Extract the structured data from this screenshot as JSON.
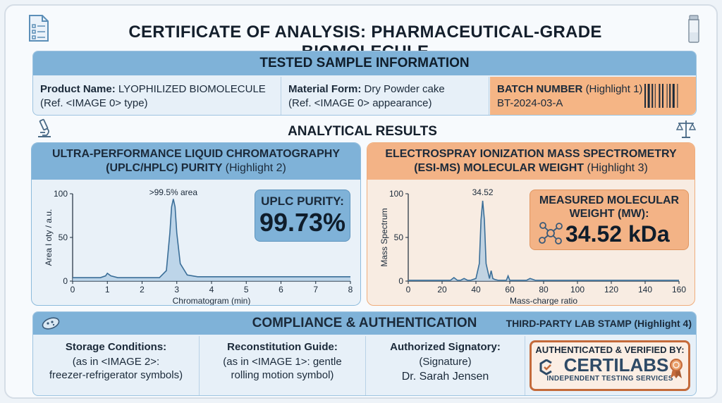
{
  "header": {
    "title": "CERTIFICATE OF ANALYSIS: PHARMACEUTICAL-GRADE BIOMOLECULE",
    "left_icon": "document-checklist-icon",
    "right_icon": "vial-icon"
  },
  "sample_info": {
    "heading": "TESTED SAMPLE INFORMATION",
    "product_name_label": "Product Name:",
    "product_name_value": "LYOPHILIZED BIOMOLECULE",
    "product_name_ref": "(Ref. <IMAGE 0> type)",
    "material_form_label": "Material Form:",
    "material_form_value": "Dry Powder cake",
    "material_form_ref": "(Ref. <IMAGE 0> appearance)",
    "batch_label": "BATCH NUMBER",
    "batch_highlight": "(Highlight 1)",
    "batch_value": "BT-2024-03-A"
  },
  "analytical": {
    "heading": "ANALYTICAL RESULTS",
    "left_icon": "microscope-icon",
    "right_icon": "balance-scale-icon"
  },
  "uplc": {
    "title_line1": "ULTRA-PERFORMANCE LIQUID CHROMATOGRAPHY",
    "title_line2": "(UPLC/HPLC) PURITY",
    "highlight": "(Highlight 2)",
    "result_label": "UPLC PURITY:",
    "result_value": "99.73%"
  },
  "esims": {
    "title_line1": "ELECTROSPRAY IONIZATION MASS SPECTROMETRY",
    "title_line2": "(ESI-MS) MOLECULAR WEIGHT",
    "highlight": "(Highlight 3)",
    "result_label_line1": "MEASURED MOLECULAR",
    "result_label_line2": "WEIGHT (MW):",
    "result_value": "34.52 kDa",
    "icon": "molecule-icon"
  },
  "chart_data": [
    {
      "type": "line",
      "xlabel": "Chromatogram (min)",
      "ylabel": "Area l oty / a.u.",
      "xlim": [
        0,
        8
      ],
      "ylim": [
        0,
        100
      ],
      "xticks": [
        0,
        1,
        2,
        3,
        4,
        5,
        6,
        7,
        8
      ],
      "yticks": [
        0,
        50,
        100
      ],
      "annotation": {
        "text": ">99.5% area",
        "x": 2.9
      },
      "series": [
        {
          "x": [
            0,
            0.8,
            0.95,
            1.0,
            1.1,
            1.3,
            2.0,
            2.5,
            2.7,
            2.8,
            2.85,
            2.9,
            2.95,
            3.0,
            3.1,
            3.3,
            3.6,
            4,
            5,
            6,
            7,
            8
          ],
          "values": [
            4,
            4,
            6,
            9,
            6,
            4,
            4,
            4,
            12,
            55,
            85,
            94,
            85,
            55,
            20,
            7,
            5,
            5,
            5,
            5,
            5,
            5
          ]
        }
      ],
      "color": "#3a6e98",
      "grid": false
    },
    {
      "type": "line",
      "xlabel": "Mass-charge ratio",
      "ylabel": "Mass Spectrum",
      "xlim": [
        0,
        160
      ],
      "ylim": [
        0,
        100
      ],
      "xticks": [
        0,
        20,
        40,
        60,
        80,
        100,
        120,
        140,
        160
      ],
      "yticks": [
        0,
        50,
        100
      ],
      "annotation": {
        "text": "34.52",
        "x": 44
      },
      "series": [
        {
          "x": [
            0,
            25,
            27,
            29,
            31,
            33,
            35,
            37,
            40,
            42,
            43,
            44,
            45,
            46,
            48,
            49,
            50,
            51,
            53,
            58,
            59,
            60,
            62,
            70,
            72,
            75,
            80,
            90,
            100,
            120,
            140,
            160
          ],
          "values": [
            1,
            1,
            4,
            1,
            1,
            3,
            1,
            1,
            3,
            20,
            70,
            92,
            70,
            20,
            3,
            12,
            3,
            2,
            1,
            1,
            6,
            1,
            1,
            1,
            3,
            1,
            1,
            1,
            1,
            1,
            1,
            1
          ]
        }
      ],
      "color": "#3a6e98",
      "grid": false
    }
  ],
  "compliance": {
    "heading": "COMPLIANCE & AUTHENTICATION",
    "stamp_label": "THIRD-PARTY LAB STAMP",
    "stamp_highlight": "(Highlight 4)",
    "left_icon": "bacteria-icon",
    "storage_label": "Storage Conditions:",
    "storage_line1": "(as in <IMAGE 2>:",
    "storage_line2": "freezer-refrigerator symbols)",
    "reconst_label": "Reconstitution Guide:",
    "reconst_line1": "(as in <IMAGE 1>: gentle",
    "reconst_line2": "rolling motion symbol)",
    "signatory_label": "Authorized Signatory:",
    "signature": "(Signature)",
    "signatory_name": "Dr. Sarah Jensen",
    "stamp_top": "AUTHENTICATED & VERIFIED BY:",
    "stamp_brand": "CERTILABS",
    "stamp_sub": "INDEPENDENT TESTING SERVICES"
  },
  "colors": {
    "blue_accent": "#7fb2d8",
    "orange_accent": "#f3b386",
    "stamp_border": "#c46a3a"
  }
}
